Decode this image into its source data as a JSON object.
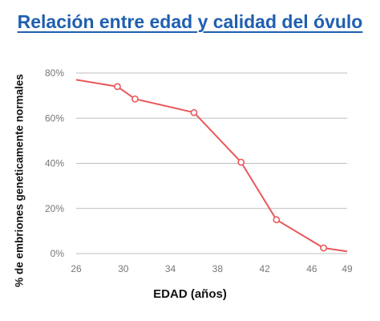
{
  "chart_data": {
    "type": "line",
    "title": "Relación entre edad y calidad del óvulo",
    "xlabel": "EDAD (años)",
    "ylabel": "% de embriones geneticamente normales",
    "x_ticks": [
      26,
      30,
      34,
      38,
      42,
      46,
      49
    ],
    "y_ticks": [
      {
        "value": 0,
        "label": "0%"
      },
      {
        "value": 20,
        "label": "20%"
      },
      {
        "value": 40,
        "label": "40%"
      },
      {
        "value": 60,
        "label": "60%"
      },
      {
        "value": 80,
        "label": "80%"
      }
    ],
    "xlim": [
      26,
      49
    ],
    "ylim": [
      0,
      80
    ],
    "grid": true,
    "series": [
      {
        "color": "#e8585a",
        "points": [
          {
            "x": 26,
            "y": 77,
            "marker": false
          },
          {
            "x": 29.5,
            "y": 74,
            "marker": true
          },
          {
            "x": 31,
            "y": 68.5,
            "marker": true
          },
          {
            "x": 36,
            "y": 62.5,
            "marker": true
          },
          {
            "x": 40,
            "y": 40.5,
            "marker": true
          },
          {
            "x": 43,
            "y": 15,
            "marker": true
          },
          {
            "x": 47,
            "y": 2.5,
            "marker": true
          },
          {
            "x": 49,
            "y": 1,
            "marker": false
          }
        ]
      }
    ]
  }
}
